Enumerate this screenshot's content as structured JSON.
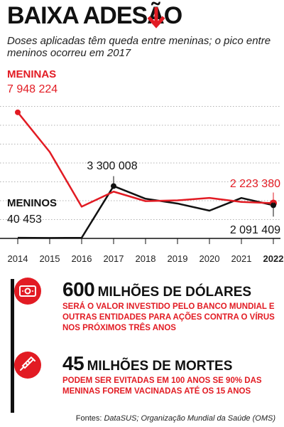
{
  "header": {
    "title": "BAIXA ADESÃO",
    "subtitle": "Doses aplicadas têm queda entre meninas; o pico entre meninos ocorreu em 2017"
  },
  "colors": {
    "accent": "#e21b23",
    "dark": "#111111",
    "grid": "#bbbbbb"
  },
  "chart_data": {
    "type": "line",
    "x": [
      "2014",
      "2015",
      "2016",
      "2017",
      "2018",
      "2019",
      "2020",
      "2021",
      "2022"
    ],
    "ylim": [
      0,
      8300000
    ],
    "grid": true,
    "series": [
      {
        "name": "MENINAS",
        "color": "#e21b23",
        "values": [
          7948224,
          5450000,
          2000000,
          2950000,
          2350000,
          2400000,
          2550000,
          2300000,
          2223380
        ]
      },
      {
        "name": "MENINOS",
        "color": "#111111",
        "values": [
          40453,
          30000,
          40000,
          3300008,
          2500000,
          2200000,
          1750000,
          2550000,
          2091409
        ]
      }
    ],
    "labels": {
      "meninas_first": "7 948 224",
      "meninos_first": "40 453",
      "meninos_peak": "3 300 008",
      "meninas_last": "2 223 380",
      "meninos_last": "2 091 409"
    }
  },
  "stats": [
    {
      "icon": "money-icon",
      "number": "600",
      "unit": "MILHÕES DE DÓLARES",
      "description": "SERÁ O VALOR INVESTIDO PELO BANCO MUNDIAL E OUTRAS ENTIDADES PARA AÇÕES CONTRA O VÍRUS NOS PRÓXIMOS TRÊS ANOS"
    },
    {
      "icon": "syringe-icon",
      "number": "45",
      "unit": "MILHÕES DE MORTES",
      "description": "PODEM SER EVITADAS EM 100 ANOS SE 90% DAS MENINAS FOREM VACINADAS ATÉ OS 15 ANOS"
    }
  ],
  "source": {
    "label": "Fontes:",
    "text": "DataSUS; Organização Mundial da Saúde (OMS)"
  }
}
